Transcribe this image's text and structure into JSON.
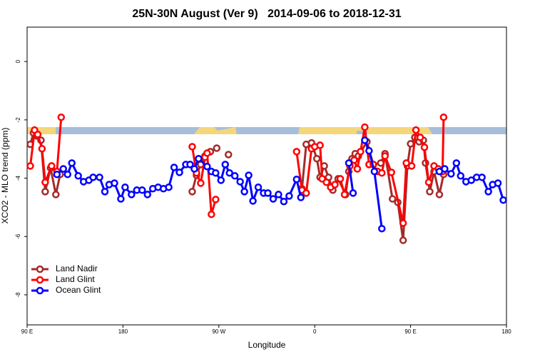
{
  "chart_data": {
    "type": "line",
    "title": "25N-30N August (Ver 9)   2014-09-06 to 2018-12-31",
    "x_label": "Longitude",
    "y_label": "XCO2 - MLO trend (ppm)",
    "xlim": [
      90,
      540
    ],
    "ylim": [
      -9.03,
      1.18
    ],
    "xticks": [
      {
        "value": 90,
        "label": "90 E"
      },
      180,
      {
        "value": 270,
        "label": "90 W"
      },
      {
        "value": 360,
        "label": "0"
      },
      {
        "value": 450,
        "label": "90 E"
      },
      {
        "value": 540,
        "label": "180"
      }
    ],
    "yticks": [
      0,
      -2,
      -4,
      -6,
      -8
    ],
    "grid": false,
    "legend": "bottom-left",
    "series": [
      {
        "name": "Land Nadir",
        "color": "#a52a2a",
        "x": [
          93,
          96,
          99,
          103,
          107,
          112,
          117,
          121,
          null,
          245,
          249,
          253,
          257,
          262,
          268,
          null,
          279,
          null,
          348,
          352,
          357,
          362,
          365,
          369,
          373,
          377,
          382,
          389,
          392,
          395,
          398,
          401,
          409,
          415,
          422,
          426,
          433,
          438,
          443,
          447,
          450,
          454,
          458,
          462,
          464,
          468,
          472,
          477,
          481
        ],
        "values": [
          -2.84,
          -2.45,
          -2.55,
          -2.7,
          -4.46,
          -3.65,
          -4.56,
          -3.87,
          null,
          -4.46,
          -3.9,
          -3.53,
          -3.24,
          -3.09,
          -2.97,
          null,
          -3.19,
          null,
          -4.36,
          -2.84,
          -2.79,
          -3.33,
          -3.97,
          -3.58,
          -3.97,
          -4.41,
          -4.02,
          -4.56,
          -3.77,
          -3.33,
          -3.16,
          -3.24,
          -2.75,
          -3.53,
          -3.48,
          -3.16,
          -4.71,
          -4.83,
          -6.13,
          -3.58,
          -2.82,
          -2.6,
          -2.75,
          -2.7,
          -3.48,
          -4.46,
          -3.77,
          -4.56,
          -3.87
        ]
      },
      {
        "name": "Land Glint",
        "color": "#ff0000",
        "x": [
          93,
          97,
          100,
          104,
          107,
          113,
          118,
          122,
          null,
          245,
          249,
          253,
          257,
          259,
          263,
          267,
          null,
          343,
          348,
          352,
          357,
          360,
          365,
          367,
          371,
          375,
          379,
          384,
          388,
          393,
          397,
          400,
          403,
          407,
          411,
          415,
          419,
          423,
          426,
          432,
          443,
          446,
          451,
          455,
          459,
          463,
          467,
          472,
          476,
          480,
          481
        ],
        "values": [
          -3.58,
          -2.35,
          -2.5,
          -2.99,
          -4.14,
          -3.58,
          -3.77,
          -1.91,
          null,
          -2.92,
          -3.82,
          -4.17,
          -3.28,
          -3.14,
          -5.24,
          -4.73,
          null,
          -3.09,
          -4.41,
          -4.51,
          -2.99,
          -2.92,
          -2.87,
          -4.02,
          -4.14,
          -4.31,
          -4.22,
          -4.02,
          -4.56,
          -3.58,
          -3.38,
          -3.68,
          -3.09,
          -2.25,
          -3.53,
          -3.53,
          -3.77,
          -3.82,
          -3.24,
          -3.8,
          -5.54,
          -3.48,
          -3.58,
          -2.35,
          -2.6,
          -2.94,
          -4.14,
          -3.58,
          -3.68,
          -3.77,
          -1.91
        ]
      },
      {
        "name": "Ocean Glint",
        "color": "#0000ff",
        "x": [
          118,
          124,
          128,
          132,
          138,
          143,
          148,
          152,
          158,
          163,
          167,
          172,
          178,
          182,
          188,
          193,
          198,
          203,
          208,
          213,
          218,
          223,
          228,
          233,
          239,
          243,
          247,
          251,
          259,
          263,
          267,
          272,
          276,
          280,
          285,
          290,
          294,
          298,
          302,
          307,
          312,
          316,
          321,
          326,
          331,
          336,
          343,
          347,
          null,
          392,
          396,
          null,
          407,
          411,
          416,
          423,
          null,
          477,
          482,
          488,
          493,
          497,
          502,
          507,
          512,
          517,
          523,
          527,
          532,
          537
        ],
        "values": [
          -3.87,
          -3.68,
          -3.87,
          -3.48,
          -3.92,
          -4.12,
          -4.07,
          -3.97,
          -3.97,
          -4.46,
          -4.22,
          -4.17,
          -4.71,
          -4.31,
          -4.56,
          -4.41,
          -4.41,
          -4.56,
          -4.36,
          -4.31,
          -4.36,
          -4.31,
          -3.63,
          -3.8,
          -3.53,
          -3.53,
          -3.68,
          -3.33,
          -3.6,
          -3.77,
          -3.82,
          -4.07,
          -3.53,
          -3.82,
          -3.92,
          -4.12,
          -4.46,
          -3.9,
          -4.78,
          -4.31,
          -4.51,
          -4.51,
          -4.71,
          -4.56,
          -4.8,
          -4.61,
          -4.04,
          -4.66,
          null,
          -3.48,
          -4.51,
          null,
          -2.7,
          -3.06,
          -3.77,
          -5.73,
          null,
          -3.77,
          -3.68,
          -3.85,
          -3.48,
          -3.92,
          -4.12,
          -4.07,
          -3.97,
          -3.97,
          -4.46,
          -4.22,
          -4.17,
          -4.75
        ]
      }
    ]
  }
}
